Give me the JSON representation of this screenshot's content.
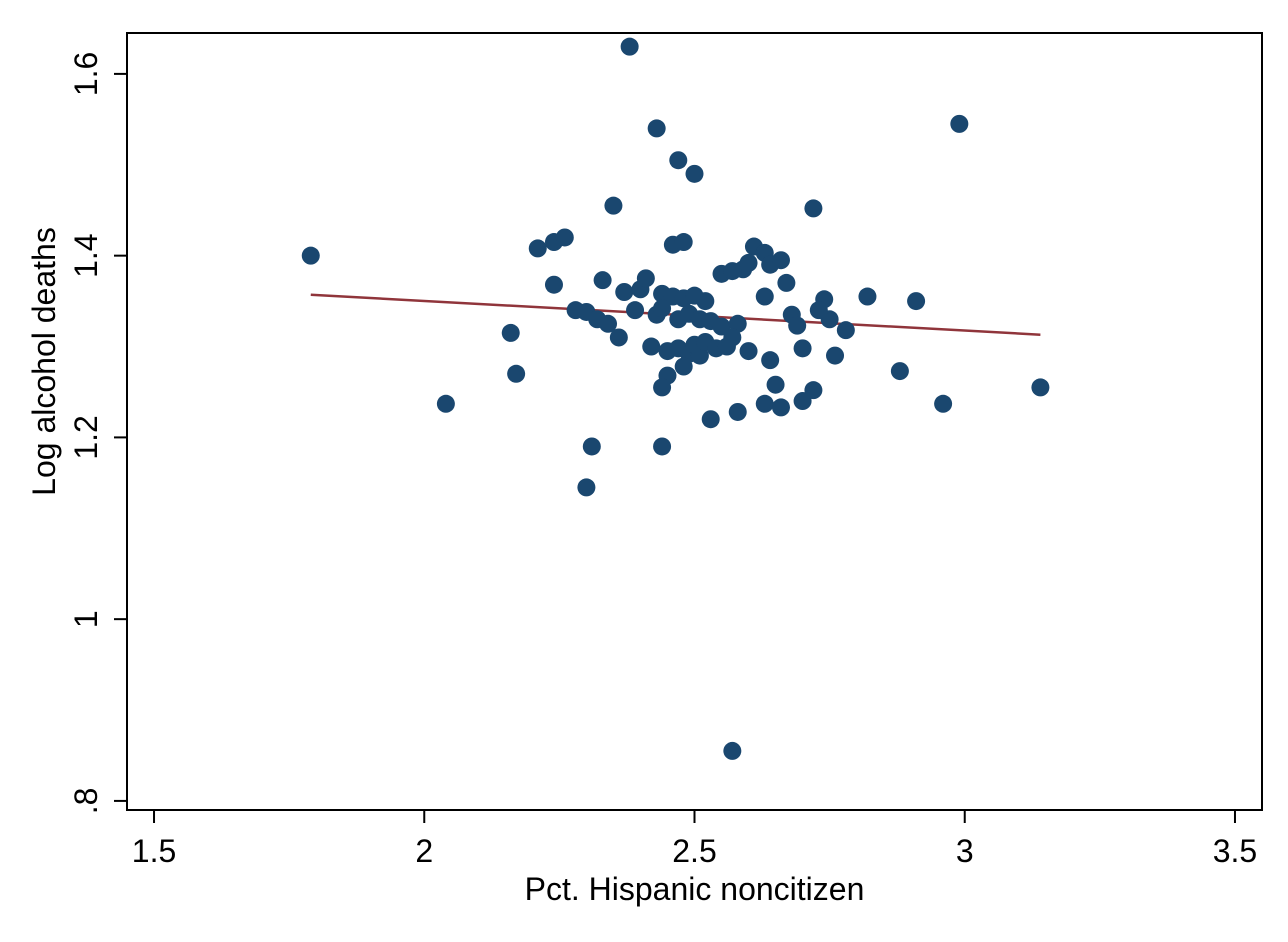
{
  "chart_data": {
    "type": "scatter",
    "title": "",
    "xlabel": "Pct. Hispanic noncitizen",
    "ylabel": "Log alcohol deaths",
    "xlim": [
      1.45,
      3.55
    ],
    "ylim": [
      0.79,
      1.645
    ],
    "grid": false,
    "legend": "none",
    "x_ticks": [
      {
        "value": 1.5,
        "label": "1.5"
      },
      {
        "value": 2.0,
        "label": "2"
      },
      {
        "value": 2.5,
        "label": "2.5"
      },
      {
        "value": 3.0,
        "label": "3"
      },
      {
        "value": 3.5,
        "label": "3.5"
      }
    ],
    "y_ticks": [
      {
        "value": 0.8,
        "label": ".8"
      },
      {
        "value": 1.0,
        "label": "1"
      },
      {
        "value": 1.2,
        "label": "1.2"
      },
      {
        "value": 1.4,
        "label": "1.4"
      },
      {
        "value": 1.6,
        "label": "1.6"
      }
    ],
    "colors": {
      "point": "#1a476f",
      "line": "#90353b",
      "axis": "#000000",
      "background": "#ffffff"
    },
    "marker_radius": 9,
    "fit_line": {
      "x1": 1.79,
      "y1": 1.357,
      "x2": 3.14,
      "y2": 1.313
    },
    "points": [
      [
        2.38,
        1.63
      ],
      [
        2.43,
        1.54
      ],
      [
        2.99,
        1.545
      ],
      [
        2.47,
        1.505
      ],
      [
        2.5,
        1.49
      ],
      [
        2.35,
        1.455
      ],
      [
        2.72,
        1.452
      ],
      [
        1.79,
        1.4
      ],
      [
        2.21,
        1.408
      ],
      [
        2.24,
        1.415
      ],
      [
        2.26,
        1.42
      ],
      [
        2.46,
        1.412
      ],
      [
        2.48,
        1.415
      ],
      [
        2.61,
        1.41
      ],
      [
        2.63,
        1.403
      ],
      [
        2.59,
        1.385
      ],
      [
        2.6,
        1.392
      ],
      [
        2.64,
        1.39
      ],
      [
        2.66,
        1.395
      ],
      [
        2.55,
        1.38
      ],
      [
        2.57,
        1.383
      ],
      [
        2.24,
        1.368
      ],
      [
        2.33,
        1.373
      ],
      [
        2.37,
        1.36
      ],
      [
        2.4,
        1.363
      ],
      [
        2.41,
        1.375
      ],
      [
        2.44,
        1.358
      ],
      [
        2.46,
        1.355
      ],
      [
        2.48,
        1.353
      ],
      [
        2.5,
        1.356
      ],
      [
        2.52,
        1.35
      ],
      [
        2.63,
        1.355
      ],
      [
        2.67,
        1.37
      ],
      [
        2.74,
        1.352
      ],
      [
        2.82,
        1.355
      ],
      [
        2.91,
        1.35
      ],
      [
        2.28,
        1.34
      ],
      [
        2.3,
        1.338
      ],
      [
        2.32,
        1.33
      ],
      [
        2.34,
        1.325
      ],
      [
        2.39,
        1.34
      ],
      [
        2.43,
        1.335
      ],
      [
        2.44,
        1.342
      ],
      [
        2.47,
        1.33
      ],
      [
        2.49,
        1.336
      ],
      [
        2.51,
        1.33
      ],
      [
        2.53,
        1.328
      ],
      [
        2.55,
        1.322
      ],
      [
        2.58,
        1.325
      ],
      [
        2.68,
        1.335
      ],
      [
        2.69,
        1.323
      ],
      [
        2.75,
        1.33
      ],
      [
        2.78,
        1.318
      ],
      [
        2.73,
        1.34
      ],
      [
        2.36,
        1.31
      ],
      [
        2.42,
        1.3
      ],
      [
        2.45,
        1.295
      ],
      [
        2.47,
        1.298
      ],
      [
        2.49,
        1.292
      ],
      [
        2.5,
        1.302
      ],
      [
        2.51,
        1.29
      ],
      [
        2.52,
        1.305
      ],
      [
        2.54,
        1.298
      ],
      [
        2.56,
        1.3
      ],
      [
        2.57,
        1.31
      ],
      [
        2.6,
        1.295
      ],
      [
        2.64,
        1.285
      ],
      [
        2.7,
        1.298
      ],
      [
        2.76,
        1.29
      ],
      [
        2.16,
        1.315
      ],
      [
        2.17,
        1.27
      ],
      [
        2.45,
        1.268
      ],
      [
        2.48,
        1.278
      ],
      [
        2.44,
        1.255
      ],
      [
        2.65,
        1.258
      ],
      [
        2.04,
        1.237
      ],
      [
        2.53,
        1.22
      ],
      [
        2.58,
        1.228
      ],
      [
        2.63,
        1.237
      ],
      [
        2.66,
        1.233
      ],
      [
        2.7,
        1.24
      ],
      [
        2.72,
        1.252
      ],
      [
        2.88,
        1.273
      ],
      [
        2.96,
        1.237
      ],
      [
        3.14,
        1.255
      ],
      [
        2.31,
        1.19
      ],
      [
        2.44,
        1.19
      ],
      [
        2.3,
        1.145
      ],
      [
        2.57,
        0.855
      ]
    ]
  }
}
